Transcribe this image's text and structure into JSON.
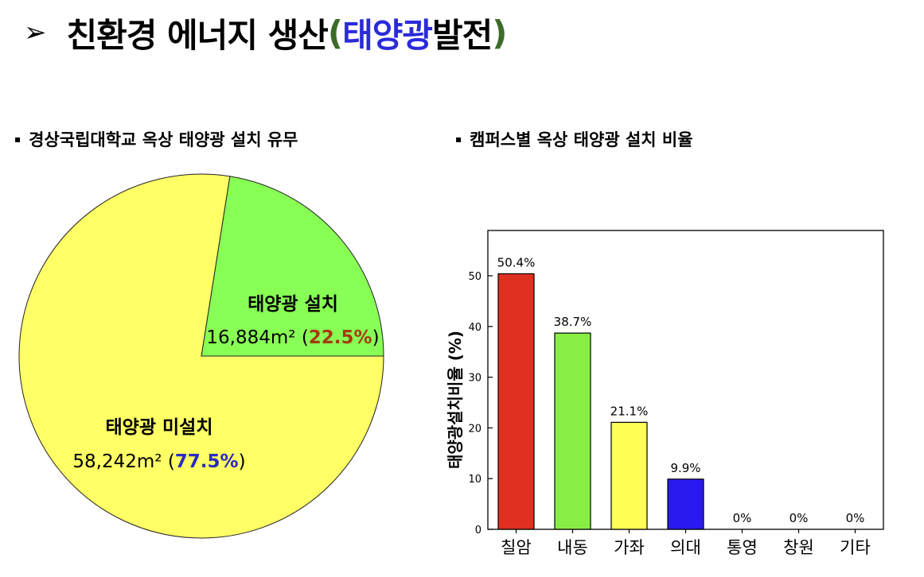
{
  "title": {
    "bullet": "➢",
    "main": "친환경 에너지 생산",
    "paren_open": "(",
    "highlight": "태양광",
    "rest": " 발전",
    "paren_close": ")"
  },
  "left_heading": {
    "bullet": "▪",
    "text": "경상국립대학교 옥상 태양광 설치 유무"
  },
  "right_heading": {
    "bullet": "▪",
    "text": "캠퍼스별 옥상 태양광 설치 비율"
  },
  "colors": {
    "pie_installed": "#88ff55",
    "pie_not_installed": "#ffff66",
    "installed_pct": "#a63a10",
    "not_installed_pct": "#2b2bbf",
    "bars": [
      "#e03020",
      "#88ee44",
      "#ffff55",
      "#2a1af0",
      "#888888",
      "#888888",
      "#888888"
    ]
  },
  "chart_data": [
    {
      "type": "pie",
      "slices": [
        {
          "label": "태양광 설치",
          "area": "16,884m²",
          "value": 22.5,
          "pct_text": "22.5%"
        },
        {
          "label": "태양광 미설치",
          "area": "58,242m²",
          "value": 77.5,
          "pct_text": "77.5%"
        }
      ]
    },
    {
      "type": "bar",
      "categories": [
        "칠암",
        "내동",
        "가좌",
        "의대",
        "통영",
        "창원",
        "기타"
      ],
      "values": [
        50.4,
        38.7,
        21.1,
        9.9,
        0,
        0,
        0
      ],
      "data_labels": [
        "50.4%",
        "38.7%",
        "21.1%",
        "9.9%",
        "0%",
        "0%",
        "0%"
      ],
      "ylabel": "태양광설치비율 (%)",
      "ylim": [
        0,
        50
      ],
      "yticks": [
        0,
        10,
        20,
        30,
        40,
        50
      ],
      "grid": false
    }
  ]
}
